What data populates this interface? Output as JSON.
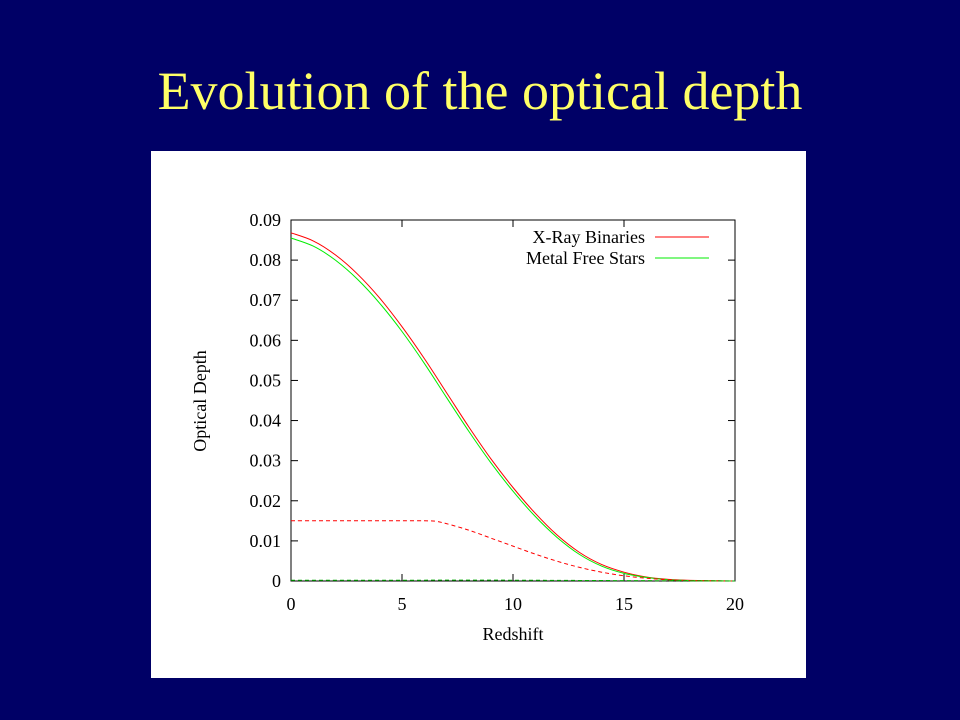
{
  "slide": {
    "title": "Evolution of the optical depth"
  },
  "chart_data": {
    "type": "line",
    "title": "",
    "xlabel": "Redshift",
    "ylabel": "Optical Depth",
    "xlim": [
      0,
      20
    ],
    "ylim": [
      0,
      0.09
    ],
    "x_ticks": [
      "0",
      "5",
      "10",
      "15",
      "20"
    ],
    "y_ticks": [
      "0",
      "0.01",
      "0.02",
      "0.03",
      "0.04",
      "0.05",
      "0.06",
      "0.07",
      "0.08",
      "0.09"
    ],
    "grid": false,
    "legend_position": "top-right",
    "series": [
      {
        "name": "X-Ray Binaries",
        "color": "#ff0000",
        "style": "solid",
        "x": [
          0,
          1,
          2,
          3,
          4,
          5,
          6,
          7,
          8,
          9,
          10,
          11,
          12,
          13,
          14,
          15,
          16,
          17,
          18,
          19,
          20
        ],
        "y": [
          0.0868,
          0.0848,
          0.0813,
          0.0765,
          0.0705,
          0.0634,
          0.0555,
          0.047,
          0.0385,
          0.0305,
          0.0233,
          0.0169,
          0.0114,
          0.0071,
          0.0041,
          0.0022,
          0.001,
          0.0004,
          0.00015,
          5e-05,
          0.0
        ]
      },
      {
        "name": "Metal Free Stars",
        "color": "#00ee00",
        "style": "solid",
        "x": [
          0,
          1,
          2,
          3,
          4,
          5,
          6,
          7,
          8,
          9,
          10,
          11,
          12,
          13,
          14,
          15,
          16,
          17,
          18,
          19,
          20
        ],
        "y": [
          0.0855,
          0.0835,
          0.08,
          0.0752,
          0.0692,
          0.0622,
          0.0543,
          0.0458,
          0.0374,
          0.0295,
          0.0224,
          0.0161,
          0.0108,
          0.0066,
          0.0037,
          0.0019,
          0.0009,
          0.0003,
          0.0001,
          3e-05,
          0.0
        ]
      },
      {
        "color": "#ff0000",
        "style": "dashed",
        "x": [
          0,
          1,
          2,
          3,
          4,
          5,
          6,
          6.5,
          7,
          8,
          9,
          10,
          11,
          12,
          13,
          14,
          15,
          16,
          17,
          18,
          19,
          20
        ],
        "y": [
          0.015,
          0.015,
          0.015,
          0.015,
          0.015,
          0.015,
          0.015,
          0.0149,
          0.0143,
          0.0127,
          0.0107,
          0.0087,
          0.0067,
          0.0049,
          0.0034,
          0.0022,
          0.0013,
          0.0007,
          0.0003,
          0.0001,
          3e-05,
          0.0
        ]
      },
      {
        "color": "#00aa00",
        "style": "dashed",
        "x": [
          0,
          5,
          10,
          15,
          20
        ],
        "y": [
          0.0002,
          0.0002,
          0.0002,
          0.0001,
          0.0
        ]
      }
    ]
  }
}
